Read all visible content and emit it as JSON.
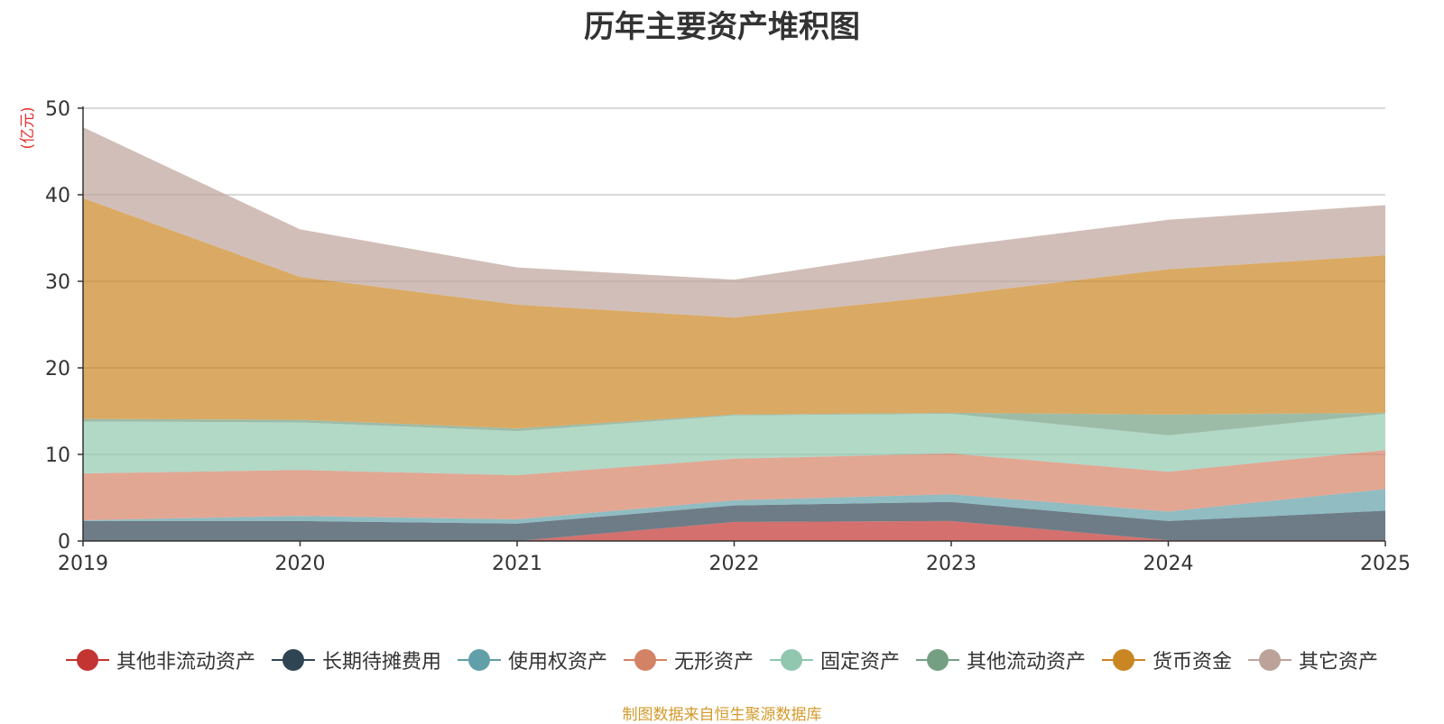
{
  "chart_data": {
    "type": "area",
    "stacked": true,
    "title": "历年主要资产堆积图",
    "ylabel": "(亿元)",
    "xlabel": "",
    "x": [
      "2019",
      "2020",
      "2021",
      "2022",
      "2023",
      "2024",
      "2025"
    ],
    "ylim": [
      0,
      50
    ],
    "yticks": [
      0,
      10,
      20,
      30,
      40,
      50
    ],
    "grid": true,
    "legend_position": "bottom",
    "series": [
      {
        "name": "其他非流动资产",
        "color": "#c23531",
        "values": [
          0,
          0,
          0,
          2.2,
          2.3,
          0.1,
          0.1
        ]
      },
      {
        "name": "长期待摊费用",
        "color": "#2f4554",
        "values": [
          2.3,
          2.3,
          2.0,
          1.9,
          2.2,
          2.2,
          3.4
        ]
      },
      {
        "name": "使用权资产",
        "color": "#61a0a8",
        "values": [
          0.1,
          0.6,
          0.5,
          0.6,
          0.9,
          1.1,
          2.5
        ]
      },
      {
        "name": "无形资产",
        "color": "#d48265",
        "values": [
          5.4,
          5.3,
          5.1,
          4.8,
          4.7,
          4.6,
          4.5
        ]
      },
      {
        "name": "固定资产",
        "color": "#91c7ae",
        "values": [
          6.0,
          5.5,
          5.1,
          5.0,
          4.6,
          4.2,
          4.2
        ]
      },
      {
        "name": "其他流动资产",
        "color": "#749f83",
        "values": [
          0.3,
          0.3,
          0.3,
          0.1,
          0.1,
          2.4,
          0.1
        ]
      },
      {
        "name": "货币资金",
        "color": "#ca8622",
        "values": [
          25.5,
          16.5,
          14.3,
          11.2,
          13.6,
          16.8,
          18.2
        ]
      },
      {
        "name": "其它资产",
        "color": "#bda29a",
        "values": [
          8.2,
          5.5,
          4.3,
          4.4,
          5.6,
          5.7,
          5.8
        ]
      }
    ]
  },
  "source_note": "制图数据来自恒生聚源数据库"
}
